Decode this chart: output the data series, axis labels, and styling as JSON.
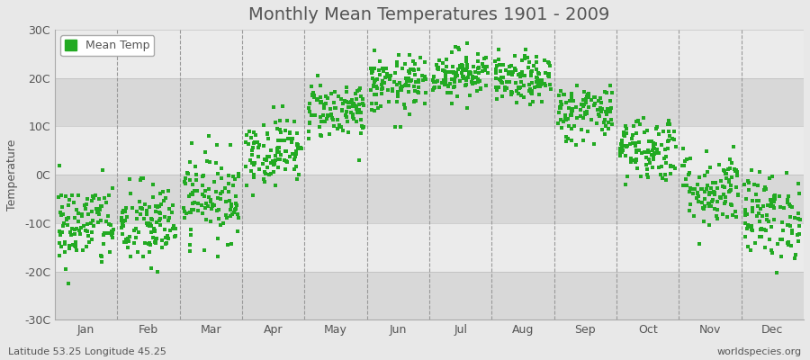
{
  "title": "Monthly Mean Temperatures 1901 - 2009",
  "ylabel": "Temperature",
  "subtitle": "Latitude 53.25 Longitude 45.25",
  "watermark": "worldspecies.org",
  "legend_label": "Mean Temp",
  "dot_color": "#22aa22",
  "bg_color": "#e8e8e8",
  "plot_bg_color_light": "#ebebeb",
  "plot_bg_color_dark": "#d8d8d8",
  "ylim": [
    -30,
    30
  ],
  "yticks": [
    -30,
    -20,
    -10,
    0,
    10,
    20,
    30
  ],
  "ytick_labels": [
    "-30C",
    "-20C",
    "-10C",
    "0C",
    "10C",
    "20C",
    "30C"
  ],
  "months": [
    "Jan",
    "Feb",
    "Mar",
    "Apr",
    "May",
    "Jun",
    "Jul",
    "Aug",
    "Sep",
    "Oct",
    "Nov",
    "Dec"
  ],
  "monthly_means": [
    -10.5,
    -10.5,
    -4.5,
    5.0,
    13.5,
    18.5,
    21.0,
    19.5,
    13.0,
    5.5,
    -3.0,
    -8.5
  ],
  "monthly_stds": [
    4.5,
    4.5,
    4.5,
    3.5,
    3.0,
    3.0,
    2.5,
    2.5,
    3.0,
    3.5,
    4.0,
    4.5
  ],
  "n_years": 109,
  "seed": 42,
  "title_fontsize": 14,
  "axis_label_fontsize": 9,
  "tick_fontsize": 9,
  "marker_size": 12,
  "grid_color": "#999999",
  "grid_linestyle": "--",
  "grid_linewidth": 0.8,
  "spine_color": "#aaaaaa",
  "text_color": "#555555"
}
